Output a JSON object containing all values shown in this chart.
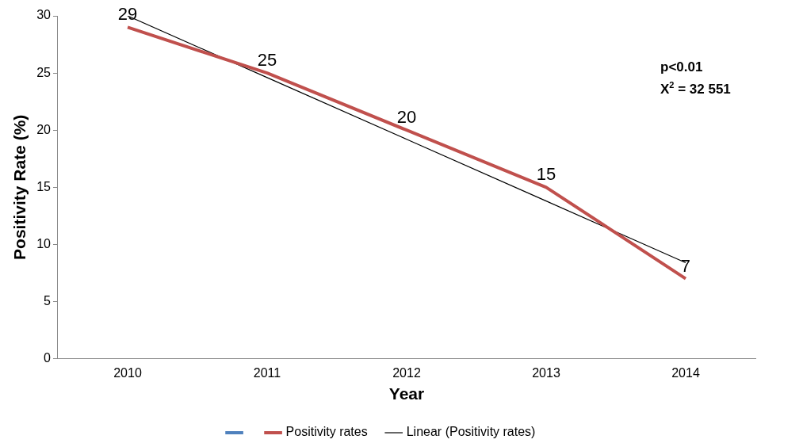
{
  "chart_data": {
    "type": "line",
    "categories": [
      "2010",
      "2011",
      "2012",
      "2013",
      "2014"
    ],
    "xlabel": "Year",
    "ylabel": "Positivity Rate (%)",
    "ylim": [
      0,
      30
    ],
    "yticks": [
      0,
      5,
      10,
      15,
      20,
      25,
      30
    ],
    "grid": false,
    "legend": "bottom",
    "marker": "none",
    "line_style": "solid",
    "series": [
      {
        "color": "#4f81bd",
        "values": [
          null,
          null,
          null,
          null,
          null
        ]
      },
      {
        "name": "Positivity rates",
        "color": "#c0504d",
        "values": [
          29,
          25,
          20,
          15,
          7
        ],
        "data_labels": true
      },
      {
        "name": "Linear (Positivity rates)",
        "color": "#000000",
        "type": "line",
        "values": [
          30,
          24.6,
          19.2,
          13.8,
          8.4
        ]
      }
    ],
    "annotations": [
      "p<0.01",
      "X$^{2}$ = 32 551"
    ]
  }
}
